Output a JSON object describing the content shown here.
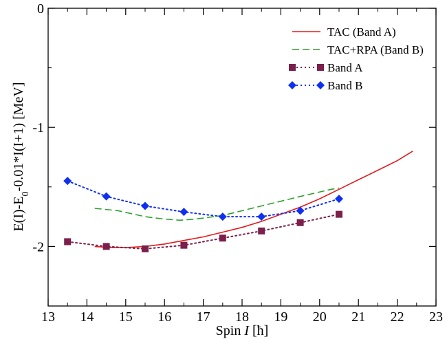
{
  "chart_data": {
    "type": "line",
    "xlabel_prefix": "Spin ",
    "xlabel_var": "I",
    "xlabel_suffix": " [ħ]",
    "ylabel_part1": "E(I)-E",
    "ylabel_sub": "0",
    "ylabel_part2": "-0.01*I(I+1) [MeV]",
    "xlim": [
      13,
      23
    ],
    "ylim": [
      -2.5,
      0
    ],
    "xticks": [
      13,
      14,
      15,
      16,
      17,
      18,
      19,
      20,
      21,
      22,
      23
    ],
    "yticks": [
      {
        "value": 0,
        "label": "0"
      },
      {
        "value": -1,
        "label": "-1"
      },
      {
        "value": -2,
        "label": "-2"
      }
    ],
    "legend_position": "top-right",
    "series": [
      {
        "name": "TAC (Band A)",
        "style": "solid",
        "color": "#e31a1c",
        "marker": "none",
        "x": [
          14.2,
          14.6,
          15.0,
          15.5,
          16.0,
          16.5,
          17.0,
          17.5,
          18.0,
          18.5,
          19.0,
          19.5,
          20.0,
          20.5,
          21.0,
          21.5,
          22.0,
          22.4
        ],
        "y": [
          -2.0,
          -2.01,
          -2.01,
          -2.0,
          -1.98,
          -1.95,
          -1.92,
          -1.88,
          -1.84,
          -1.79,
          -1.73,
          -1.67,
          -1.6,
          -1.52,
          -1.44,
          -1.36,
          -1.28,
          -1.2
        ]
      },
      {
        "name": "TAC+RPA (Band B)",
        "style": "dashed",
        "color": "#2ca02c",
        "marker": "none",
        "x": [
          14.2,
          14.8,
          15.5,
          16.0,
          16.4,
          16.8,
          17.5,
          18.5,
          19.5,
          20.3,
          20.5
        ],
        "y": [
          -1.68,
          -1.7,
          -1.75,
          -1.77,
          -1.78,
          -1.77,
          -1.74,
          -1.66,
          -1.58,
          -1.52,
          -1.51
        ]
      },
      {
        "name": "Band A",
        "style": "dotted",
        "color": "#7b1f4b",
        "marker": "square",
        "x": [
          13.5,
          14.5,
          15.5,
          16.5,
          17.5,
          18.5,
          19.5,
          20.5
        ],
        "y": [
          -1.96,
          -2.0,
          -2.02,
          -1.99,
          -1.93,
          -1.87,
          -1.8,
          -1.73
        ]
      },
      {
        "name": "Band B",
        "style": "dotted",
        "color": "#1030f0",
        "marker": "diamond",
        "x": [
          13.5,
          14.5,
          15.5,
          16.5,
          17.5,
          18.5,
          19.5,
          20.5
        ],
        "y": [
          -1.45,
          -1.58,
          -1.66,
          -1.71,
          -1.75,
          -1.75,
          -1.7,
          -1.6
        ]
      }
    ]
  }
}
